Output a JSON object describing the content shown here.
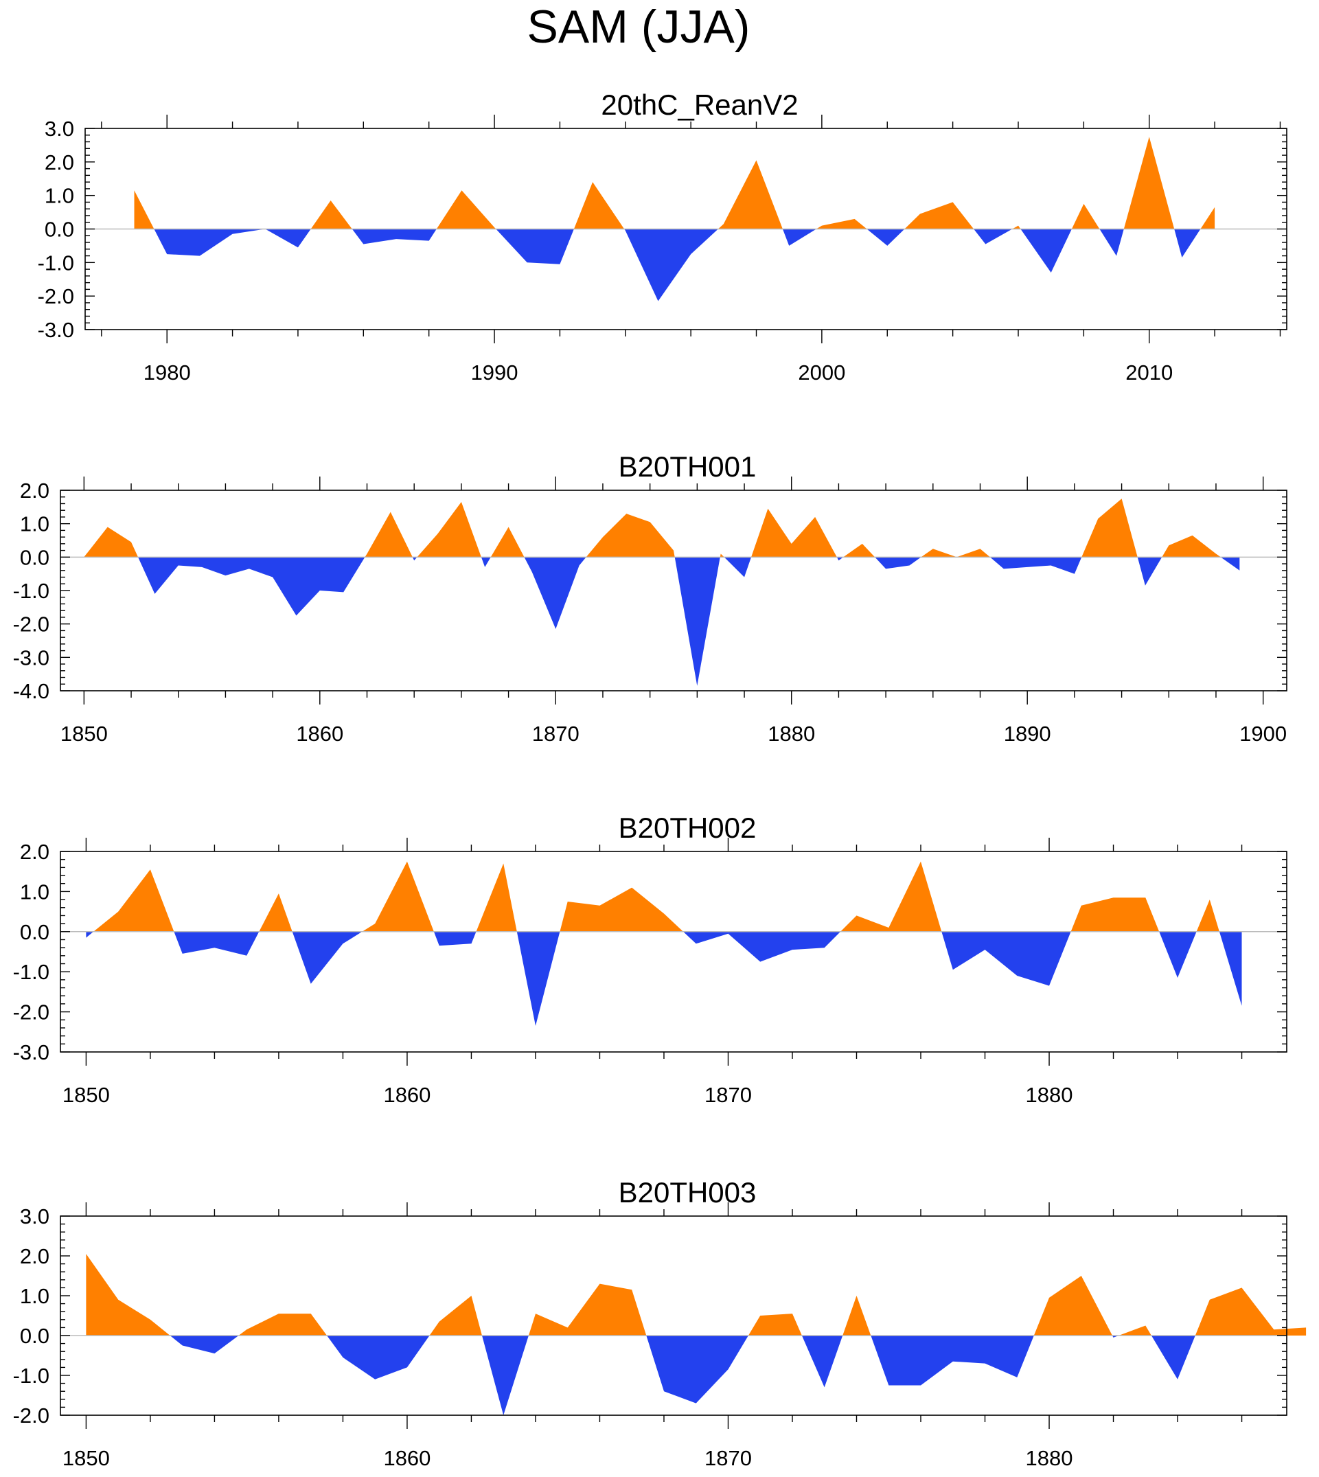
{
  "title": "SAM (JJA)",
  "colors": {
    "positive": "#ff8000",
    "negative": "#2341ee",
    "axis": "#000000",
    "zero_line": "#bbbbbb"
  },
  "chart_data": [
    {
      "type": "area",
      "title": "20thC_ReanV2",
      "xlim": [
        1977.5,
        2014.2
      ],
      "ylim": [
        -3,
        3
      ],
      "yticks": [
        -3,
        -2,
        -1,
        0,
        1,
        2,
        3
      ],
      "ytick_labels": [
        "-3.0",
        "-2.0",
        "-1.0",
        "0.0",
        "1.0",
        "2.0",
        "3.0"
      ],
      "xticks": [
        1980,
        1990,
        2000,
        2010
      ],
      "xtick_labels": [
        "1980",
        "1990",
        "2000",
        "2010"
      ],
      "x_start": 1979,
      "values": [
        1.15,
        -0.75,
        -0.8,
        -0.15,
        0.0,
        -0.55,
        0.85,
        -0.45,
        -0.3,
        -0.35,
        1.15,
        0.05,
        -1.0,
        -1.05,
        1.4,
        -0.05,
        -2.15,
        -0.75,
        0.15,
        2.05,
        -0.5,
        0.1,
        0.3,
        -0.5,
        0.45,
        0.8,
        -0.45,
        0.1,
        -1.3,
        0.75,
        -0.8,
        2.75,
        -0.85,
        0.65
      ]
    },
    {
      "type": "area",
      "title": "B20TH001",
      "xlim": [
        1849,
        1901
      ],
      "ylim": [
        -4,
        2
      ],
      "yticks": [
        -4,
        -3,
        -2,
        -1,
        0,
        1,
        2
      ],
      "ytick_labels": [
        "-4.0",
        "-3.0",
        "-2.0",
        "-1.0",
        "0.0",
        "1.0",
        "2.0"
      ],
      "xticks": [
        1850,
        1860,
        1870,
        1880,
        1890,
        1900
      ],
      "xtick_labels": [
        "1850",
        "1860",
        "1870",
        "1880",
        "1890",
        "1900"
      ],
      "x_start": 1850,
      "values": [
        0.0,
        0.9,
        0.45,
        -1.1,
        -0.25,
        -0.3,
        -0.55,
        -0.35,
        -0.6,
        -1.75,
        -1.0,
        -1.05,
        0.1,
        1.35,
        -0.1,
        0.7,
        1.65,
        -0.3,
        0.9,
        -0.45,
        -2.15,
        -0.25,
        0.6,
        1.3,
        1.05,
        0.2,
        -3.85,
        0.1,
        -0.6,
        1.45,
        0.4,
        1.2,
        -0.1,
        0.4,
        -0.35,
        -0.25,
        0.25,
        0.0,
        0.25,
        -0.35,
        -0.3,
        -0.25,
        -0.5,
        1.15,
        1.75,
        -0.85,
        0.35,
        0.65,
        0.1,
        -0.4
      ]
    },
    {
      "type": "area",
      "title": "B20TH002",
      "xlim": [
        1849.2,
        1887.4
      ],
      "ylim": [
        -3,
        2
      ],
      "yticks": [
        -3,
        -2,
        -1,
        0,
        1,
        2
      ],
      "ytick_labels": [
        "-3.0",
        "-2.0",
        "-1.0",
        "0.0",
        "1.0",
        "2.0"
      ],
      "xticks": [
        1850,
        1860,
        1870,
        1880
      ],
      "xtick_labels": [
        "1850",
        "1860",
        "1870",
        "1880"
      ],
      "x_start": 1850,
      "values": [
        -0.15,
        0.5,
        1.55,
        -0.55,
        -0.4,
        -0.6,
        0.95,
        -1.3,
        -0.3,
        0.2,
        1.75,
        -0.35,
        -0.3,
        1.7,
        -2.35,
        0.75,
        0.65,
        1.1,
        0.45,
        -0.3,
        -0.05,
        -0.75,
        -0.45,
        -0.4,
        0.4,
        0.1,
        1.75,
        -0.95,
        -0.45,
        -1.1,
        -1.35,
        0.65,
        0.85,
        0.85,
        -1.15,
        0.8,
        -1.85
      ]
    },
    {
      "type": "area",
      "title": "B20TH003",
      "xlim": [
        1849.2,
        1887.4
      ],
      "ylim": [
        -2,
        3
      ],
      "yticks": [
        -2,
        -1,
        0,
        1,
        2,
        3
      ],
      "ytick_labels": [
        "-2.0",
        "-1.0",
        "0.0",
        "1.0",
        "2.0",
        "3.0"
      ],
      "xticks": [
        1850,
        1860,
        1870,
        1880
      ],
      "xtick_labels": [
        "1850",
        "1860",
        "1870",
        "1880"
      ],
      "x_start": 1850,
      "values": [
        2.05,
        0.9,
        0.4,
        -0.25,
        -0.45,
        0.15,
        0.55,
        0.55,
        -0.55,
        -1.1,
        -0.8,
        0.35,
        1.0,
        -2.0,
        0.55,
        0.2,
        1.3,
        1.15,
        -1.4,
        -1.7,
        -0.85,
        0.5,
        0.55,
        -1.3,
        1.0,
        -1.25,
        -1.25,
        -0.65,
        -0.7,
        -1.05,
        0.95,
        1.5,
        -0.05,
        0.25,
        -1.1,
        0.9,
        1.2,
        0.15,
        0.2
      ]
    }
  ]
}
